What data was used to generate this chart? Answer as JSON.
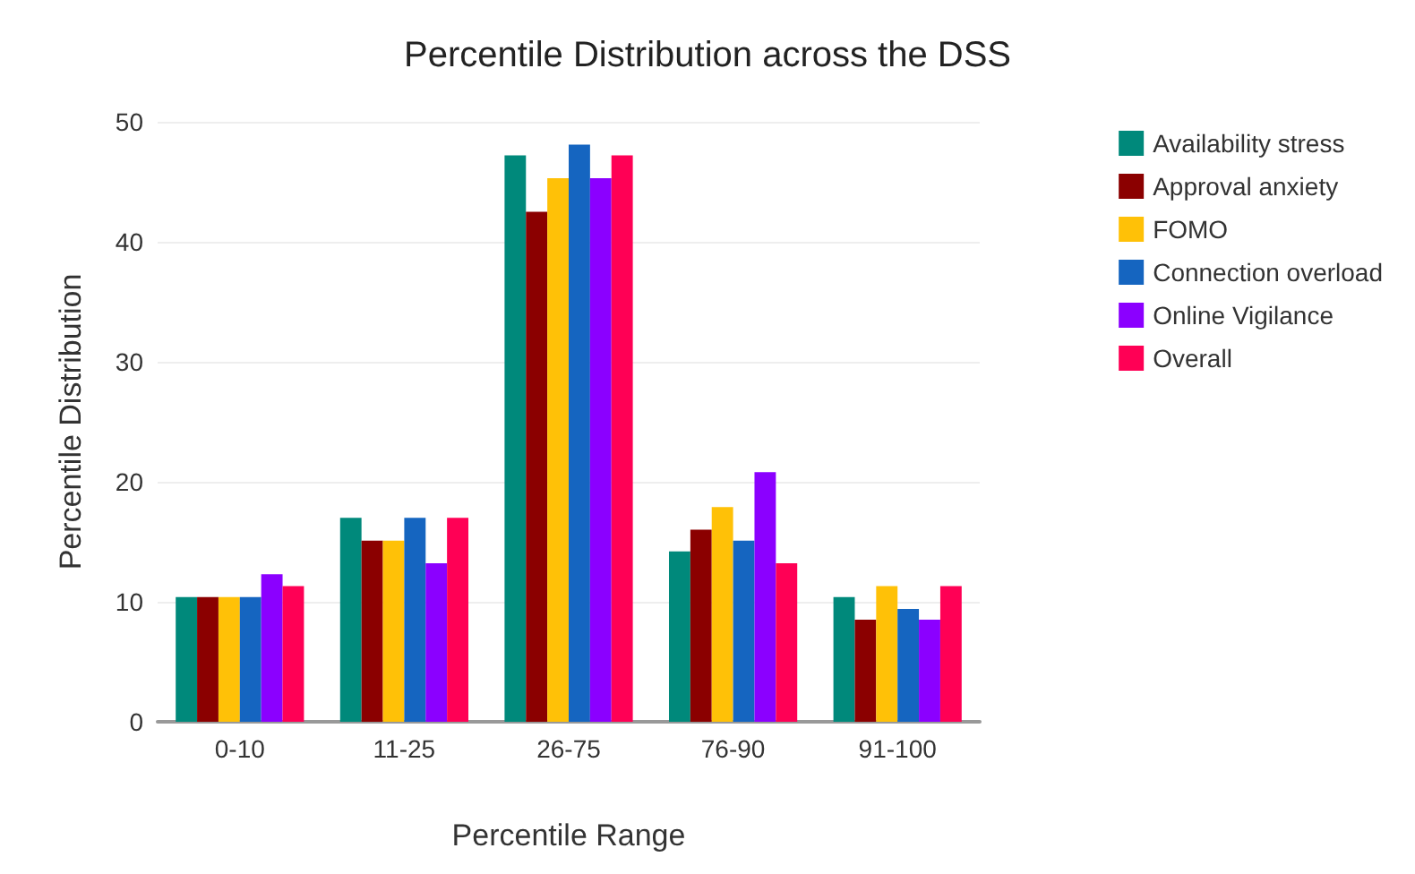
{
  "chart_data": {
    "type": "bar",
    "title": "Percentile Distribution across the DSS",
    "xlabel": "Percentile Range",
    "ylabel": "Percentile Distribution",
    "categories": [
      "0-10",
      "11-25",
      "26-75",
      "76-90",
      "91-100"
    ],
    "series": [
      {
        "name": "Availability stress",
        "color": "#00897b",
        "values": [
          10.4,
          17.0,
          47.2,
          14.2,
          10.4
        ]
      },
      {
        "name": "Approval anxiety",
        "color": "#8b0000",
        "values": [
          10.4,
          15.1,
          42.5,
          16.0,
          8.5
        ]
      },
      {
        "name": "FOMO",
        "color": "#ffc107",
        "values": [
          10.4,
          15.1,
          45.3,
          17.9,
          11.3
        ]
      },
      {
        "name": "Connection overload",
        "color": "#1565c0",
        "values": [
          10.4,
          17.0,
          48.1,
          15.1,
          9.4
        ]
      },
      {
        "name": "Online Vigilance",
        "color": "#8b00ff",
        "values": [
          12.3,
          13.2,
          45.3,
          20.8,
          8.5
        ]
      },
      {
        "name": "Overall",
        "color": "#ff0055",
        "values": [
          11.3,
          17.0,
          47.2,
          13.2,
          11.3
        ]
      }
    ],
    "ylim": [
      0,
      50
    ],
    "yticks": [
      0,
      10,
      20,
      30,
      40,
      50
    ],
    "grid": "y",
    "legend": "right"
  }
}
